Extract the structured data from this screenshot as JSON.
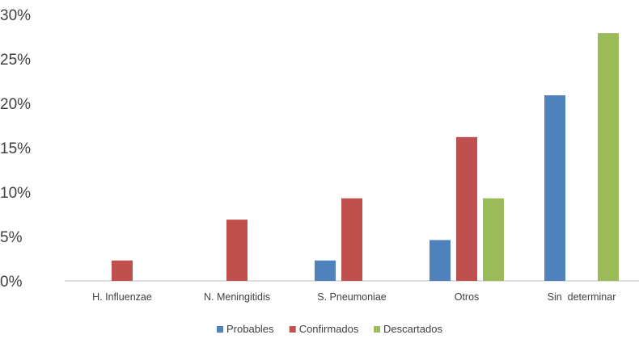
{
  "chart_data": {
    "type": "bar",
    "categories": [
      "H. Influenzae",
      "N. Meningitidis",
      "S. Pneumoniae",
      "Otros",
      "Sin  determinar"
    ],
    "series": [
      {
        "name": "Probables",
        "color": "#4F81BD",
        "values": [
          0,
          0,
          2.3,
          4.6,
          20.9
        ]
      },
      {
        "name": "Confirmados",
        "color": "#C0504D",
        "values": [
          2.3,
          6.9,
          9.3,
          16.2,
          0
        ]
      },
      {
        "name": "Descartados",
        "color": "#9BBB59",
        "values": [
          0,
          0,
          0,
          9.3,
          27.9
        ]
      }
    ],
    "ylim": [
      0,
      30
    ],
    "yticks": [
      "0%",
      "5%",
      "10%",
      "15%",
      "20%",
      "25%",
      "30%"
    ],
    "ytick_values": [
      0,
      5,
      10,
      15,
      20,
      25,
      30
    ],
    "grid": false,
    "legend_position": "bottom",
    "title": "",
    "xlabel": "",
    "ylabel": ""
  }
}
